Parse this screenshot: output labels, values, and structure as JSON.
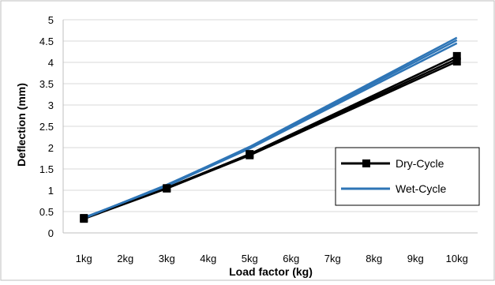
{
  "chart_data": {
    "type": "line",
    "xlabel": "Load factor (kg)",
    "ylabel": "Deflection (mm)",
    "x": [
      "1kg",
      "2kg",
      "3kg",
      "4kg",
      "5kg",
      "6kg",
      "7kg",
      "8kg",
      "9kg",
      "10kg"
    ],
    "ylim": [
      0,
      5
    ],
    "yticks": [
      "0",
      "0.5",
      "1",
      "1.5",
      "2",
      "2.5",
      "3",
      "3.5",
      "4",
      "4.5",
      "5"
    ],
    "grid": "horizontal",
    "legend_position": "right",
    "series": [
      {
        "name": "Dry-Cycle",
        "color": "#000000",
        "marker": "square",
        "lines": [
          {
            "points": [
              [
                1,
                0.35
              ],
              [
                3,
                1.05
              ],
              [
                5,
                1.85
              ],
              [
                10,
                4.15
              ]
            ],
            "markers": [
              1,
              3,
              5,
              10
            ]
          },
          {
            "points": [
              [
                1,
                0.33
              ],
              [
                3,
                1.04
              ],
              [
                5,
                1.82
              ],
              [
                10,
                4.02
              ]
            ],
            "markers": [
              1,
              3,
              5,
              10
            ]
          },
          {
            "points": [
              [
                1,
                0.34
              ],
              [
                3,
                1.06
              ],
              [
                5,
                1.84
              ],
              [
                10,
                4.08
              ]
            ],
            "markers": []
          }
        ]
      },
      {
        "name": "Wet-Cycle",
        "color": "#2E75B6",
        "marker": "none",
        "lines": [
          {
            "points": [
              [
                1,
                0.35
              ],
              [
                3,
                1.12
              ],
              [
                5,
                2.02
              ],
              [
                10,
                4.58
              ]
            ],
            "markers": []
          },
          {
            "points": [
              [
                1,
                0.36
              ],
              [
                3,
                1.1
              ],
              [
                5,
                1.98
              ],
              [
                10,
                4.45
              ]
            ],
            "markers": []
          },
          {
            "points": [
              [
                1,
                0.34
              ],
              [
                3,
                1.13
              ],
              [
                5,
                2.0
              ],
              [
                10,
                4.52
              ]
            ],
            "markers": []
          }
        ]
      }
    ]
  }
}
